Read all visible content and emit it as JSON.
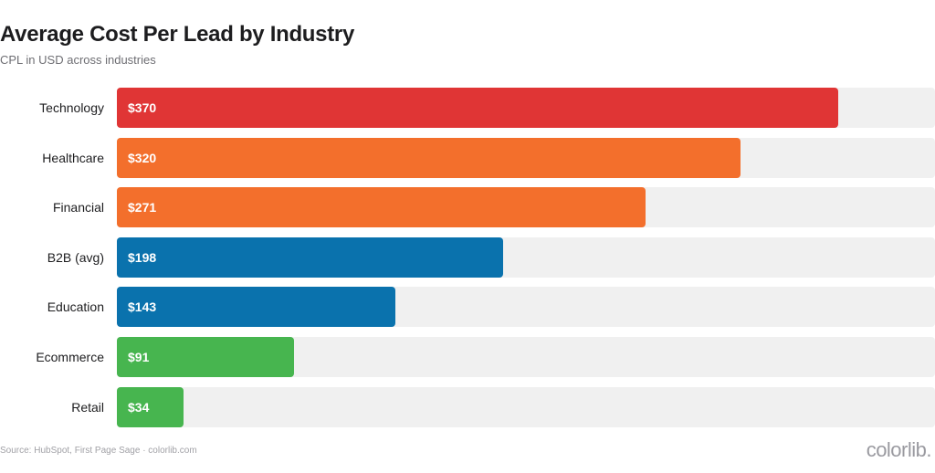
{
  "header": {
    "title": "Average Cost Per Lead by Industry",
    "subtitle": "CPL in USD across industries"
  },
  "footer": {
    "source": "Source: HubSpot, First Page Sage · colorlib.com",
    "brand": "colorlib."
  },
  "chart_data": {
    "type": "bar",
    "orientation": "horizontal",
    "title": "Average Cost Per Lead by Industry",
    "subtitle": "CPL in USD across industries",
    "categories": [
      "Technology",
      "Healthcare",
      "Financial",
      "B2B (avg)",
      "Education",
      "Ecommerce",
      "Retail"
    ],
    "values": [
      370,
      320,
      271,
      198,
      143,
      91,
      34
    ],
    "value_labels": [
      "$370",
      "$320",
      "$271",
      "$198",
      "$143",
      "$91",
      "$34"
    ],
    "colors": [
      "#e03535",
      "#f36f2c",
      "#f36f2c",
      "#0a72ad",
      "#0a72ad",
      "#47b54f",
      "#47b54f"
    ],
    "track_color": "#f0f0f0",
    "xlim": [
      0,
      400
    ],
    "grid": false,
    "legend": "none"
  }
}
